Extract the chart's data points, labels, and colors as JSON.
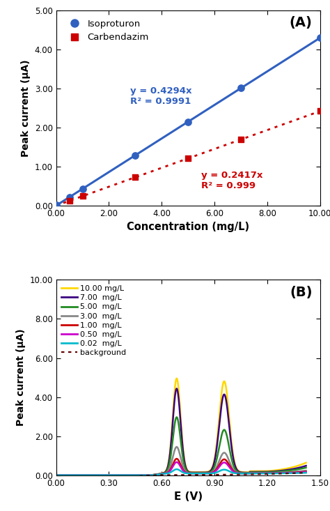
{
  "panel_A": {
    "title": "(A)",
    "xlabel": "Concentration (mg/L)",
    "ylabel": "Peak current (μA)",
    "xlim": [
      0,
      10.0
    ],
    "ylim": [
      0,
      5.0
    ],
    "xticks": [
      0.0,
      2.0,
      4.0,
      6.0,
      8.0,
      10.0
    ],
    "yticks": [
      0.0,
      1.0,
      2.0,
      3.0,
      4.0,
      5.0
    ],
    "isoproturon": {
      "x": [
        0.02,
        0.5,
        1.0,
        3.0,
        5.0,
        7.0,
        10.0
      ],
      "y": [
        0.0086,
        0.215,
        0.429,
        1.288,
        2.147,
        3.006,
        4.294
      ],
      "color": "#3060c0",
      "marker": "o",
      "label": "Isoproturon",
      "slope": 0.4294,
      "r2": "0.9991"
    },
    "carbendazim": {
      "x": [
        0.5,
        1.0,
        3.0,
        5.0,
        7.0,
        10.0
      ],
      "y": [
        0.121,
        0.242,
        0.725,
        1.209,
        1.692,
        2.417
      ],
      "color": "#cc0000",
      "marker": "s",
      "label": "Carbendazim",
      "slope": 0.2417,
      "r2": "0.999"
    },
    "eq_iso_x": 2.8,
    "eq_iso_y": 2.6,
    "eq_carb_x": 5.5,
    "eq_carb_y": 0.45
  },
  "panel_B": {
    "title": "(B)",
    "xlabel": "E (V)",
    "ylabel": "Peak current (μA)",
    "xlim": [
      0.0,
      1.5
    ],
    "ylim": [
      0.0,
      10.0
    ],
    "xticks": [
      0.0,
      0.3,
      0.6,
      0.9,
      1.2,
      1.5
    ],
    "yticks": [
      0.0,
      2.0,
      4.0,
      6.0,
      8.0,
      10.0
    ],
    "concentrations": [
      "10.00 mg/L",
      "7.00  mg/L",
      "5.00  mg/L",
      "3.00  mg/L",
      "1.00  mg/L",
      "0.50  mg/L",
      "0.02  mg/L",
      "background"
    ],
    "colors": [
      "#FFD700",
      "#3B0080",
      "#228B22",
      "#888888",
      "#CC0000",
      "#CC00CC",
      "#00BBCC",
      "#660000"
    ],
    "linestyles": [
      "-",
      "-",
      "-",
      "-",
      "-",
      "-",
      "-",
      ":"
    ],
    "peak1_heights": [
      4.8,
      4.3,
      2.85,
      1.35,
      0.75,
      0.58,
      0.22,
      0.0
    ],
    "peak2_heights": [
      4.65,
      4.0,
      2.2,
      1.05,
      0.72,
      0.56,
      0.2,
      0.0
    ],
    "tail_scales": [
      1.0,
      0.72,
      0.55,
      0.28,
      0.18,
      0.14,
      0.08,
      0.05
    ]
  }
}
